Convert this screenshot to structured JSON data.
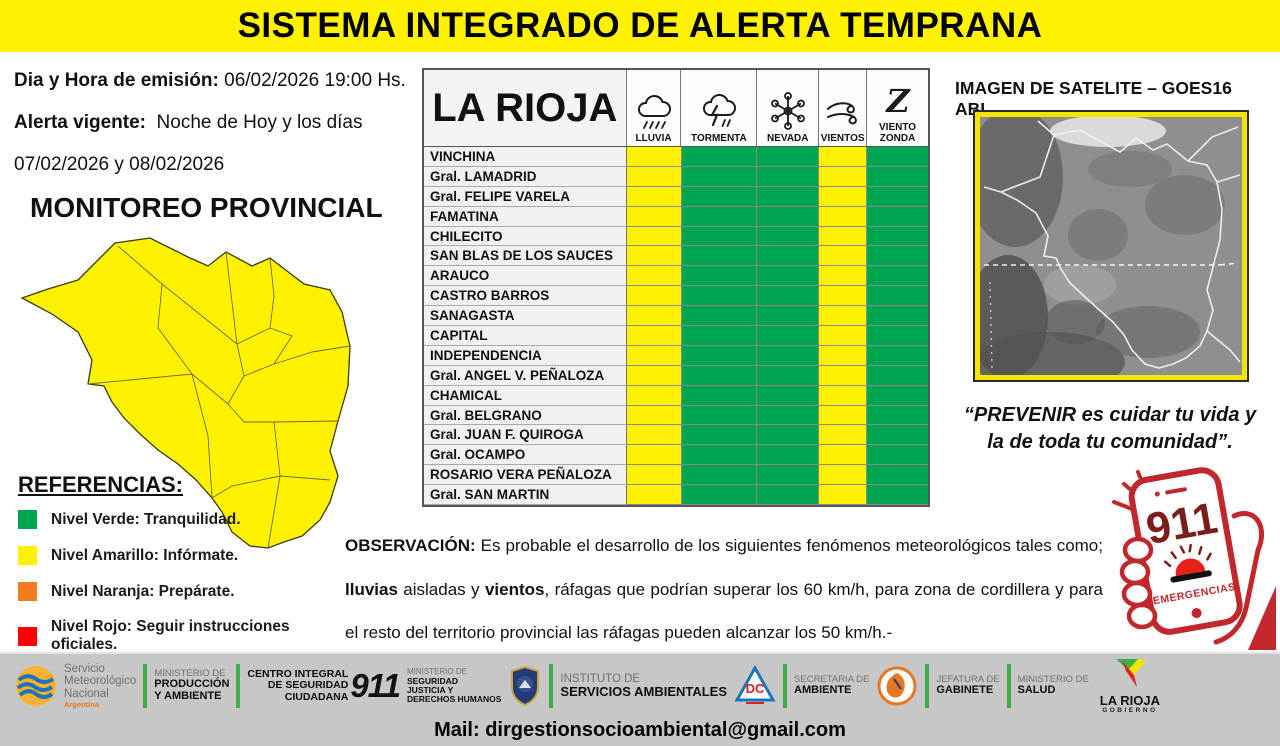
{
  "header": {
    "title": "SISTEMA INTEGRADO DE ALERTA TEMPRANA"
  },
  "info": {
    "emission_label": "Dia y Hora de emisión:",
    "emission_value": "06/02/2026  19:00 Hs.",
    "alert_label": "Alerta vigente:",
    "alert_value": "Noche de Hoy y los días",
    "alert_dates": "07/02/2026 y 08/02/2026",
    "monitoring_title": "MONITOREO PROVINCIAL"
  },
  "references": {
    "title": "REFERENCIAS:",
    "items": [
      {
        "color": "#00A551",
        "label": "Nivel Verde: Tranquilidad."
      },
      {
        "color": "#FFF200",
        "label": "Nivel Amarillo: Infórmate."
      },
      {
        "color": "#F47B20",
        "label": "Nivel Naranja: Prepárate."
      },
      {
        "color": "#FF0000",
        "label": "Nivel Rojo: Seguir instrucciones oficiales."
      }
    ]
  },
  "table": {
    "title": "LA RIOJA",
    "columns": [
      {
        "label": "LLUVIA",
        "icon": "rain-cloud-icon"
      },
      {
        "label": "TORMENTA",
        "icon": "storm-cloud-icon"
      },
      {
        "label": "NEVADA",
        "icon": "snowflake-icon"
      },
      {
        "label": "VIENTOS",
        "icon": "wind-icon"
      },
      {
        "label": "VIENTO ZONDA",
        "icon": "zonda-icon"
      }
    ],
    "levels": {
      "Y": "#FFF200",
      "G": "#00A551"
    },
    "rows": [
      {
        "name": "VINCHINA",
        "cells": [
          "Y",
          "G",
          "G",
          "Y",
          "G"
        ]
      },
      {
        "name": "Gral. LAMADRID",
        "cells": [
          "Y",
          "G",
          "G",
          "Y",
          "G"
        ]
      },
      {
        "name": "Gral. FELIPE VARELA",
        "cells": [
          "Y",
          "G",
          "G",
          "Y",
          "G"
        ]
      },
      {
        "name": "FAMATINA",
        "cells": [
          "Y",
          "G",
          "G",
          "Y",
          "G"
        ]
      },
      {
        "name": "CHILECITO",
        "cells": [
          "Y",
          "G",
          "G",
          "Y",
          "G"
        ]
      },
      {
        "name": "SAN BLAS DE LOS SAUCES",
        "cells": [
          "Y",
          "G",
          "G",
          "Y",
          "G"
        ]
      },
      {
        "name": "ARAUCO",
        "cells": [
          "Y",
          "G",
          "G",
          "Y",
          "G"
        ]
      },
      {
        "name": "CASTRO BARROS",
        "cells": [
          "Y",
          "G",
          "G",
          "Y",
          "G"
        ]
      },
      {
        "name": "SANAGASTA",
        "cells": [
          "Y",
          "G",
          "G",
          "Y",
          "G"
        ]
      },
      {
        "name": "CAPITAL",
        "cells": [
          "Y",
          "G",
          "G",
          "Y",
          "G"
        ]
      },
      {
        "name": "INDEPENDENCIA",
        "cells": [
          "Y",
          "G",
          "G",
          "Y",
          "G"
        ]
      },
      {
        "name": "Gral. ANGEL V. PEÑALOZA",
        "cells": [
          "Y",
          "G",
          "G",
          "Y",
          "G"
        ]
      },
      {
        "name": "CHAMICAL",
        "cells": [
          "Y",
          "G",
          "G",
          "Y",
          "G"
        ]
      },
      {
        "name": "Gral. BELGRANO",
        "cells": [
          "Y",
          "G",
          "G",
          "Y",
          "G"
        ]
      },
      {
        "name": "Gral. JUAN F. QUIROGA",
        "cells": [
          "Y",
          "G",
          "G",
          "Y",
          "G"
        ]
      },
      {
        "name": "Gral. OCAMPO",
        "cells": [
          "Y",
          "G",
          "G",
          "Y",
          "G"
        ]
      },
      {
        "name": "ROSARIO VERA PEÑALOZA",
        "cells": [
          "Y",
          "G",
          "G",
          "Y",
          "G"
        ]
      },
      {
        "name": "Gral. SAN MARTIN",
        "cells": [
          "Y",
          "G",
          "G",
          "Y",
          "G"
        ]
      }
    ]
  },
  "satellite": {
    "title": "IMAGEN DE SATELITE – GOES16 ABI"
  },
  "quote": {
    "line1": "“PREVENIR es cuidar tu vida y",
    "line2": "la de toda tu comunidad”."
  },
  "emergency": {
    "number": "911",
    "label": "EMERGENCIAS"
  },
  "observation": {
    "segments": [
      {
        "t": "OBSERVACIÓN:",
        "b": true
      },
      {
        "t": " Es probable el desarrollo de los siguientes fenómenos meteorológicos tales como; ",
        "b": false
      },
      {
        "t": "lluvias",
        "b": true
      },
      {
        "t": " aisladas y ",
        "b": false
      },
      {
        "t": "vientos",
        "b": true
      },
      {
        "t": ", ráfagas que podrían superar los 60 km/h, para zona de cordillera y para el resto del territorio provincial las ráfagas pueden alcanzar los  50 km/h.-",
        "b": false
      }
    ]
  },
  "footer": {
    "smn": {
      "l1": "Servicio",
      "l2": "Meteorológico",
      "l3": "Nacional",
      "sub": "Argentina"
    },
    "produccion": {
      "top": "MINISTERIO DE",
      "b1": "PRODUCCIÓN",
      "b2": "Y AMBIENTE"
    },
    "cisc": {
      "t1": "CENTRO INTEGRAL",
      "t2": "DE SEGURIDAD",
      "t3": "CIUDADANA",
      "num": "911"
    },
    "justicia": {
      "top": "MINISTERIO DE",
      "b1": "SEGURIDAD",
      "b2": "JUSTICIA Y",
      "b3": "DERECHOS HUMANOS"
    },
    "isa": {
      "top": "INSTITUTO DE",
      "b1": "SERVICIOS AMBIENTALES"
    },
    "dc": {
      "text": "DC"
    },
    "ambiente": {
      "top": "SECRETARIA DE",
      "b1": "AMBIENTE"
    },
    "gabinete": {
      "top": "JEFATURA DE",
      "b1": "GABINETE"
    },
    "salud": {
      "top": "MINISTERIO DE",
      "b1": "SALUD"
    },
    "larioja": {
      "b1": "LA RIOJA",
      "sub": "GOBIERNO"
    },
    "mail": "Mail: dirgestionsocioambiental@gmail.com"
  }
}
